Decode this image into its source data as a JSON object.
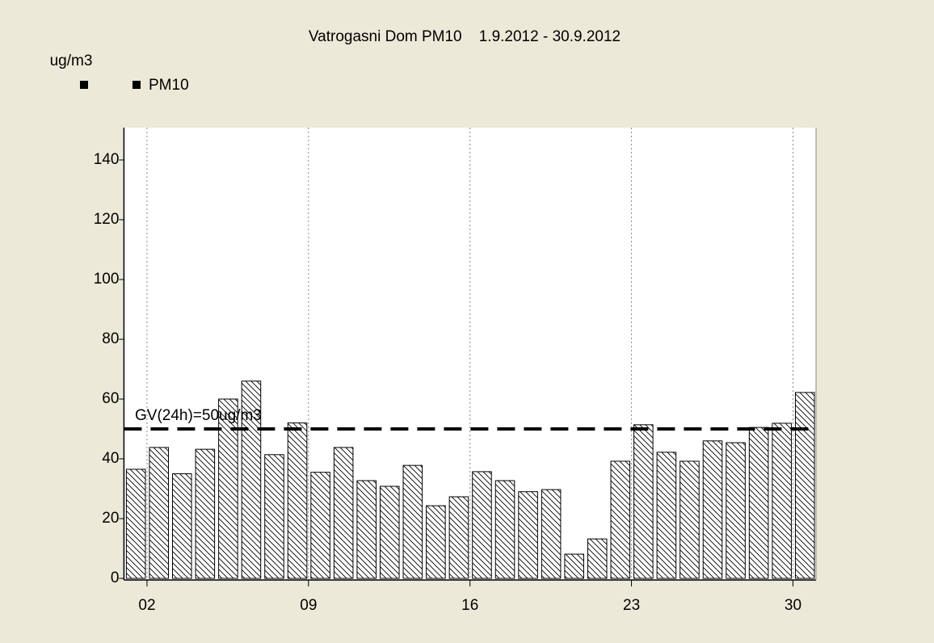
{
  "chart_data": {
    "type": "bar",
    "title": "Vatrogasni Dom PM10    1.9.2012 - 30.9.2012",
    "y_label": "ug/m3",
    "series": [
      {
        "name": "PM10",
        "color": "#000000",
        "values": [
          36.5,
          43.8,
          35,
          43.2,
          60,
          66,
          41.4,
          52,
          35.5,
          43.8,
          32.7,
          30.8,
          37.8,
          24.3,
          27.3,
          35.7,
          32.7,
          29,
          29.7,
          8.1,
          13.2,
          39.2,
          51.4,
          42.2,
          39.2,
          46,
          45.4,
          50.5,
          51.9,
          62.2
        ]
      }
    ],
    "x": [
      1,
      2,
      3,
      4,
      5,
      6,
      7,
      8,
      9,
      10,
      11,
      12,
      13,
      14,
      15,
      16,
      17,
      18,
      19,
      20,
      21,
      22,
      23,
      24,
      25,
      26,
      27,
      28,
      29,
      30
    ],
    "xlim": [
      1,
      31
    ],
    "xticks": [
      {
        "value": 2,
        "label": "02"
      },
      {
        "value": 9,
        "label": "09"
      },
      16,
      23,
      30
    ],
    "ylim": [
      0,
      150
    ],
    "yticks": [
      0,
      20,
      40,
      60,
      80,
      100,
      120,
      140
    ],
    "grid": true,
    "limit_line": {
      "value": 50,
      "label": "GV(24h)=50ug/m3"
    }
  }
}
